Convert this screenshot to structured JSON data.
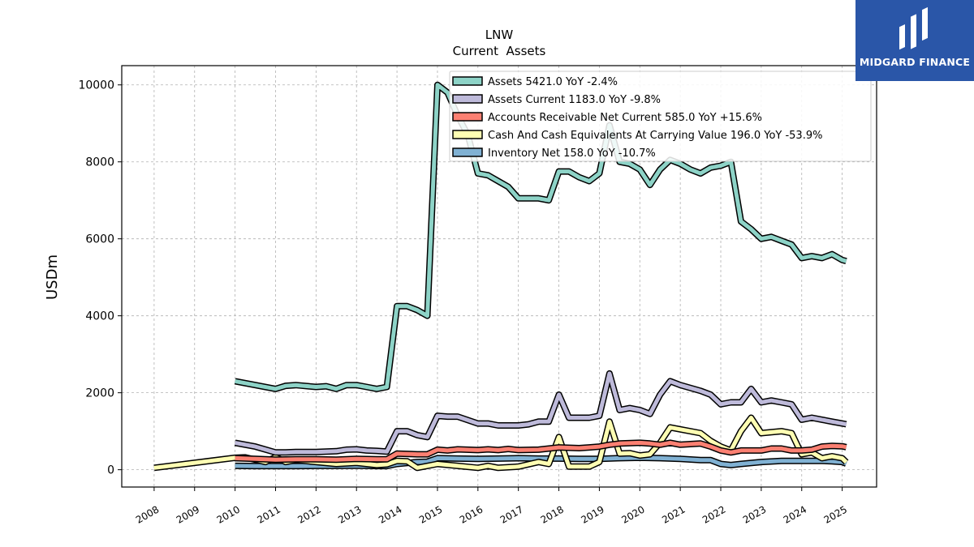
{
  "logo": {
    "name": "MIDGARD FINANCE"
  },
  "chart_data": {
    "type": "line",
    "title": "LNW",
    "subtitle": "Current  Assets",
    "ylabel": "USDm",
    "ylim": [
      -450,
      10500
    ],
    "xlim": [
      2007.2,
      2025.85
    ],
    "yticks": [
      0,
      2000,
      4000,
      6000,
      8000,
      10000
    ],
    "ytick_labels": [
      "0",
      "2000",
      "4000",
      "6000",
      "8000",
      "10000"
    ],
    "xticks": [
      2008,
      2009,
      2010,
      2011,
      2012,
      2013,
      2014,
      2015,
      2016,
      2017,
      2018,
      2019,
      2020,
      2021,
      2022,
      2023,
      2024,
      2025
    ],
    "xtick_labels": [
      "2008",
      "2009",
      "2010",
      "2011",
      "2012",
      "2013",
      "2014",
      "2015",
      "2016",
      "2017",
      "2018",
      "2019",
      "2020",
      "2021",
      "2022",
      "2023",
      "2024",
      "2025"
    ],
    "grid": true,
    "legend_position": "top-right",
    "series": [
      {
        "name": "Inventory Net",
        "legend": "Inventory Net  158.0 YoY -10.7%",
        "color": "#80b1d3",
        "points": [
          [
            2010.0,
            100
          ],
          [
            2010.5,
            95
          ],
          [
            2011.0,
            95
          ],
          [
            2011.5,
            95
          ],
          [
            2012.0,
            100
          ],
          [
            2012.5,
            100
          ],
          [
            2013.0,
            105
          ],
          [
            2013.5,
            95
          ],
          [
            2013.75,
            95
          ],
          [
            2014.0,
            150
          ],
          [
            2014.5,
            200
          ],
          [
            2014.75,
            210
          ],
          [
            2015.0,
            300
          ],
          [
            2015.5,
            290
          ],
          [
            2016.0,
            280
          ],
          [
            2016.5,
            290
          ],
          [
            2017.0,
            300
          ],
          [
            2017.5,
            290
          ],
          [
            2018.0,
            290
          ],
          [
            2018.5,
            280
          ],
          [
            2019.0,
            280
          ],
          [
            2019.5,
            300
          ],
          [
            2020.0,
            310
          ],
          [
            2020.5,
            300
          ],
          [
            2021.0,
            280
          ],
          [
            2021.5,
            250
          ],
          [
            2021.75,
            250
          ],
          [
            2022.0,
            150
          ],
          [
            2022.25,
            120
          ],
          [
            2022.5,
            150
          ],
          [
            2023.0,
            200
          ],
          [
            2023.5,
            230
          ],
          [
            2024.0,
            230
          ],
          [
            2024.5,
            230
          ],
          [
            2024.75,
            220
          ],
          [
            2025.0,
            200
          ],
          [
            2025.1,
            158
          ]
        ]
      },
      {
        "name": "Cash And Cash Equivalents At Carrying Value",
        "legend": "Cash And Cash Equivalents At Carrying Value  196.0 YoY -53.9%",
        "color": "#ffffb3",
        "points": [
          [
            2008.0,
            50
          ],
          [
            2009.0,
            180
          ],
          [
            2010.0,
            310
          ],
          [
            2010.25,
            320
          ],
          [
            2010.75,
            200
          ],
          [
            2011.0,
            330
          ],
          [
            2011.25,
            200
          ],
          [
            2011.5,
            250
          ],
          [
            2012.0,
            200
          ],
          [
            2012.5,
            150
          ],
          [
            2013.0,
            180
          ],
          [
            2013.5,
            120
          ],
          [
            2013.75,
            140
          ],
          [
            2014.0,
            230
          ],
          [
            2014.25,
            220
          ],
          [
            2014.5,
            50
          ],
          [
            2014.75,
            100
          ],
          [
            2015.0,
            150
          ],
          [
            2015.5,
            100
          ],
          [
            2016.0,
            50
          ],
          [
            2016.25,
            100
          ],
          [
            2016.5,
            50
          ],
          [
            2017.0,
            80
          ],
          [
            2017.5,
            200
          ],
          [
            2017.75,
            150
          ],
          [
            2018.0,
            850
          ],
          [
            2018.25,
            80
          ],
          [
            2018.5,
            80
          ],
          [
            2018.75,
            80
          ],
          [
            2019.0,
            200
          ],
          [
            2019.25,
            1250
          ],
          [
            2019.5,
            420
          ],
          [
            2019.75,
            430
          ],
          [
            2020.0,
            370
          ],
          [
            2020.25,
            400
          ],
          [
            2020.5,
            700
          ],
          [
            2020.75,
            1100
          ],
          [
            2021.0,
            1050
          ],
          [
            2021.5,
            950
          ],
          [
            2021.75,
            750
          ],
          [
            2022.0,
            600
          ],
          [
            2022.25,
            500
          ],
          [
            2022.5,
            1000
          ],
          [
            2022.75,
            1350
          ],
          [
            2023.0,
            950
          ],
          [
            2023.5,
            1000
          ],
          [
            2023.75,
            950
          ],
          [
            2024.0,
            400
          ],
          [
            2024.25,
            450
          ],
          [
            2024.5,
            300
          ],
          [
            2024.75,
            350
          ],
          [
            2025.0,
            300
          ],
          [
            2025.1,
            196
          ]
        ]
      },
      {
        "name": "Accounts Receivable Net Current",
        "legend": "Accounts Receivable Net Current  585.0 YoY +15.6%",
        "color": "#fb8072",
        "points": [
          [
            2010.0,
            300
          ],
          [
            2010.5,
            280
          ],
          [
            2011.0,
            260
          ],
          [
            2011.5,
            270
          ],
          [
            2012.0,
            270
          ],
          [
            2012.5,
            260
          ],
          [
            2013.0,
            280
          ],
          [
            2013.5,
            270
          ],
          [
            2013.75,
            270
          ],
          [
            2014.0,
            420
          ],
          [
            2014.5,
            400
          ],
          [
            2014.75,
            400
          ],
          [
            2015.0,
            520
          ],
          [
            2015.25,
            500
          ],
          [
            2015.5,
            530
          ],
          [
            2016.0,
            510
          ],
          [
            2016.25,
            530
          ],
          [
            2016.5,
            510
          ],
          [
            2016.75,
            540
          ],
          [
            2017.0,
            510
          ],
          [
            2017.5,
            520
          ],
          [
            2018.0,
            580
          ],
          [
            2018.5,
            560
          ],
          [
            2018.75,
            580
          ],
          [
            2019.0,
            600
          ],
          [
            2019.25,
            650
          ],
          [
            2019.5,
            680
          ],
          [
            2020.0,
            700
          ],
          [
            2020.25,
            680
          ],
          [
            2020.5,
            650
          ],
          [
            2020.75,
            700
          ],
          [
            2021.0,
            650
          ],
          [
            2021.5,
            680
          ],
          [
            2021.75,
            600
          ],
          [
            2022.0,
            500
          ],
          [
            2022.25,
            450
          ],
          [
            2022.5,
            500
          ],
          [
            2022.75,
            500
          ],
          [
            2023.0,
            500
          ],
          [
            2023.25,
            550
          ],
          [
            2023.5,
            550
          ],
          [
            2023.75,
            500
          ],
          [
            2024.0,
            500
          ],
          [
            2024.25,
            520
          ],
          [
            2024.5,
            600
          ],
          [
            2024.75,
            620
          ],
          [
            2025.0,
            610
          ],
          [
            2025.1,
            585
          ]
        ]
      },
      {
        "name": "Assets Current",
        "legend": "Assets Current  1183.0 YoY -9.8%",
        "color": "#bebada",
        "points": [
          [
            2010.0,
            700
          ],
          [
            2010.5,
            600
          ],
          [
            2011.0,
            450
          ],
          [
            2011.25,
            450
          ],
          [
            2011.5,
            460
          ],
          [
            2012.0,
            460
          ],
          [
            2012.5,
            480
          ],
          [
            2012.75,
            520
          ],
          [
            2013.0,
            530
          ],
          [
            2013.25,
            500
          ],
          [
            2013.5,
            490
          ],
          [
            2013.75,
            470
          ],
          [
            2014.0,
            1000
          ],
          [
            2014.25,
            1000
          ],
          [
            2014.5,
            900
          ],
          [
            2014.75,
            850
          ],
          [
            2015.0,
            1400
          ],
          [
            2015.25,
            1380
          ],
          [
            2015.5,
            1380
          ],
          [
            2016.0,
            1200
          ],
          [
            2016.25,
            1200
          ],
          [
            2016.5,
            1150
          ],
          [
            2017.0,
            1150
          ],
          [
            2017.25,
            1180
          ],
          [
            2017.5,
            1250
          ],
          [
            2017.75,
            1250
          ],
          [
            2018.0,
            1950
          ],
          [
            2018.25,
            1350
          ],
          [
            2018.5,
            1350
          ],
          [
            2018.75,
            1350
          ],
          [
            2019.0,
            1400
          ],
          [
            2019.25,
            2500
          ],
          [
            2019.5,
            1550
          ],
          [
            2019.75,
            1600
          ],
          [
            2020.0,
            1550
          ],
          [
            2020.25,
            1450
          ],
          [
            2020.5,
            1950
          ],
          [
            2020.75,
            2300
          ],
          [
            2021.0,
            2200
          ],
          [
            2021.5,
            2050
          ],
          [
            2021.75,
            1950
          ],
          [
            2022.0,
            1700
          ],
          [
            2022.25,
            1750
          ],
          [
            2022.5,
            1750
          ],
          [
            2022.75,
            2100
          ],
          [
            2023.0,
            1750
          ],
          [
            2023.25,
            1800
          ],
          [
            2023.5,
            1750
          ],
          [
            2023.75,
            1700
          ],
          [
            2024.0,
            1300
          ],
          [
            2024.25,
            1350
          ],
          [
            2024.5,
            1300
          ],
          [
            2024.75,
            1250
          ],
          [
            2025.0,
            1200
          ],
          [
            2025.1,
            1183
          ]
        ]
      },
      {
        "name": "Assets",
        "legend": "Assets  5421.0 YoY -2.4%",
        "color": "#8dd3c7",
        "points": [
          [
            2010.0,
            2300
          ],
          [
            2010.5,
            2200
          ],
          [
            2011.0,
            2100
          ],
          [
            2011.25,
            2180
          ],
          [
            2011.5,
            2200
          ],
          [
            2012.0,
            2150
          ],
          [
            2012.25,
            2170
          ],
          [
            2012.5,
            2100
          ],
          [
            2012.75,
            2200
          ],
          [
            2013.0,
            2200
          ],
          [
            2013.25,
            2150
          ],
          [
            2013.5,
            2100
          ],
          [
            2013.75,
            2150
          ],
          [
            2014.0,
            4250
          ],
          [
            2014.25,
            4250
          ],
          [
            2014.5,
            4150
          ],
          [
            2014.75,
            4000
          ],
          [
            2015.0,
            10000
          ],
          [
            2015.25,
            9800
          ],
          [
            2015.5,
            9200
          ],
          [
            2015.75,
            8700
          ],
          [
            2016.0,
            7700
          ],
          [
            2016.25,
            7650
          ],
          [
            2016.5,
            7500
          ],
          [
            2016.75,
            7350
          ],
          [
            2017.0,
            7050
          ],
          [
            2017.25,
            7050
          ],
          [
            2017.5,
            7050
          ],
          [
            2017.75,
            7000
          ],
          [
            2018.0,
            7750
          ],
          [
            2018.25,
            7750
          ],
          [
            2018.5,
            7600
          ],
          [
            2018.75,
            7500
          ],
          [
            2019.0,
            7700
          ],
          [
            2019.25,
            8950
          ],
          [
            2019.5,
            8000
          ],
          [
            2019.75,
            7950
          ],
          [
            2020.0,
            7800
          ],
          [
            2020.25,
            7400
          ],
          [
            2020.5,
            7800
          ],
          [
            2020.75,
            8050
          ],
          [
            2021.0,
            7950
          ],
          [
            2021.25,
            7800
          ],
          [
            2021.5,
            7700
          ],
          [
            2021.75,
            7850
          ],
          [
            2022.0,
            7900
          ],
          [
            2022.25,
            8000
          ],
          [
            2022.5,
            6450
          ],
          [
            2022.75,
            6250
          ],
          [
            2023.0,
            6000
          ],
          [
            2023.25,
            6050
          ],
          [
            2023.5,
            5950
          ],
          [
            2023.75,
            5850
          ],
          [
            2024.0,
            5500
          ],
          [
            2024.25,
            5550
          ],
          [
            2024.5,
            5500
          ],
          [
            2024.75,
            5600
          ],
          [
            2025.0,
            5450
          ],
          [
            2025.1,
            5421
          ]
        ]
      }
    ]
  }
}
